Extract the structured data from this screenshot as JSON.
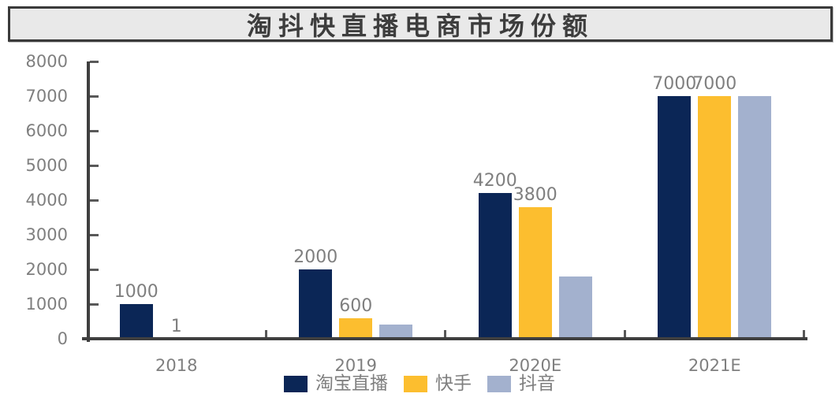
{
  "chart_data": {
    "type": "bar",
    "title": "淘抖快直播电商市场份额",
    "categories": [
      "2018",
      "2019",
      "2020E",
      "2021E"
    ],
    "series": [
      {
        "key": "taobao-live",
        "name": "淘宝直播",
        "color": "#0b2656",
        "values": [
          1000,
          2000,
          4200,
          7000
        ],
        "data_labels": [
          "1000",
          "2000",
          "4200",
          "7000"
        ]
      },
      {
        "key": "kuaishou",
        "name": "快手",
        "color": "#fcbe2f",
        "values": [
          1,
          600,
          3800,
          7000
        ],
        "data_labels": [
          "1",
          "600",
          "3800",
          "7000"
        ]
      },
      {
        "key": "douyin",
        "name": "抖音",
        "color": "#a3b1ce",
        "values": [
          0,
          400,
          1800,
          7000
        ],
        "data_labels": [
          "",
          "",
          "",
          ""
        ]
      }
    ],
    "ylim": [
      0,
      8000
    ],
    "yticks": [
      0,
      1000,
      2000,
      3000,
      4000,
      5000,
      6000,
      7000,
      8000
    ],
    "grid": false,
    "legend_position": "bottom",
    "axis_color": "#3f3f3f",
    "label_color": "#7f7f7f",
    "title_box": {
      "background": "#e9e9e9",
      "border_color": "#3a3a3a",
      "text_color": "#3d3d3d"
    }
  }
}
